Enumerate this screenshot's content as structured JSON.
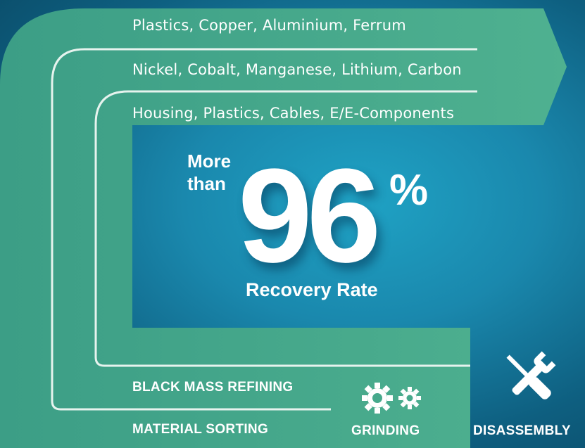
{
  "bands": {
    "outer": "Plastics, Copper, Aluminium, Ferrum",
    "middle": "Nickel, Cobalt, Manganese, Lithium, Carbon",
    "inner": "Housing, Plastics, Cables, E/E-Components"
  },
  "hero": {
    "prefix_line1": "More",
    "prefix_line2": "than",
    "value": "96",
    "unit": "%",
    "caption": "Recovery Rate"
  },
  "steps": {
    "black_mass_refining": "BLACK MASS REFINING",
    "material_sorting": "MATERIAL SORTING",
    "grinding": "GRINDING",
    "disassembly": "DISASSEMBLY"
  },
  "colors": {
    "band_green": "#46a98c",
    "background_teal": "#1a88ad"
  },
  "icons": [
    "gears-icon",
    "wrench-screwdriver-icon"
  ]
}
